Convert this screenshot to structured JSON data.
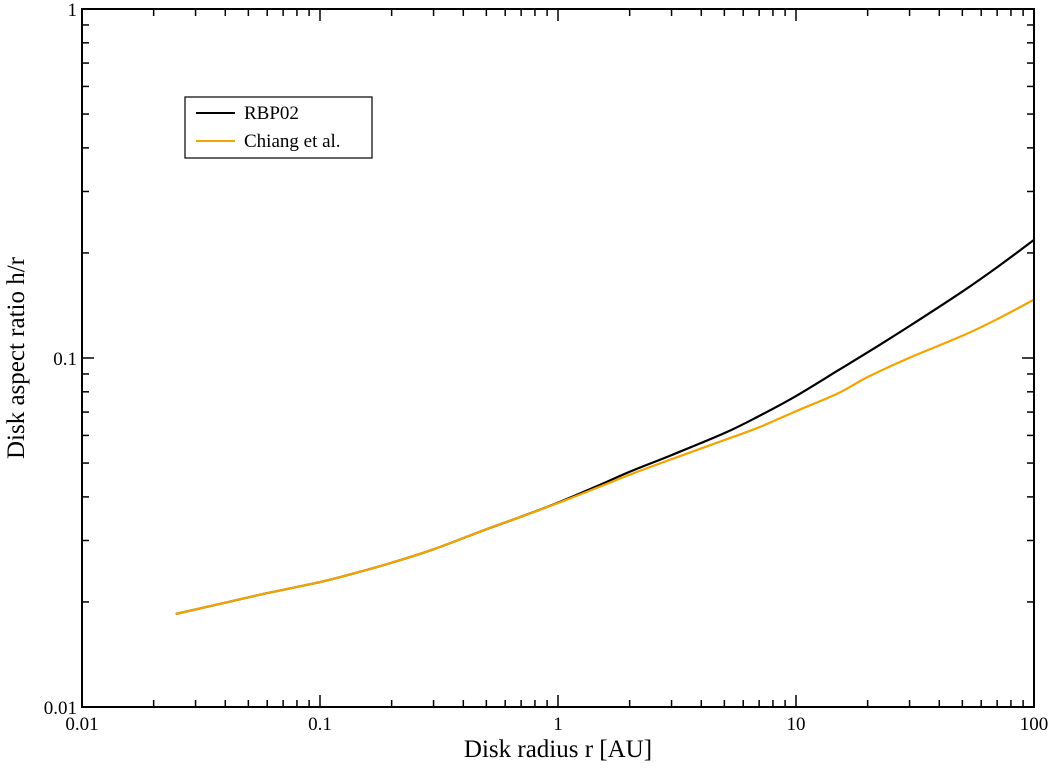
{
  "chart_data": {
    "type": "line",
    "title": "",
    "xlabel": "Disk radius  r [AU]",
    "ylabel": "Disk aspect ratio  h/r",
    "xscale": "log",
    "yscale": "log",
    "xlim": [
      0.01,
      100
    ],
    "ylim": [
      0.01,
      1
    ],
    "x_ticks": [
      0.01,
      0.1,
      1,
      10,
      100
    ],
    "x_tick_labels": [
      "0.01",
      "0.1",
      "1",
      "10",
      "100"
    ],
    "y_ticks": [
      0.01,
      0.1,
      1
    ],
    "y_tick_labels": [
      "0.01",
      "0.1",
      "1"
    ],
    "grid": false,
    "legend_position": "top-left",
    "series": [
      {
        "name": "RBP02",
        "color": "#000000",
        "x": [
          0.025,
          0.04,
          0.06,
          0.1,
          0.15,
          0.2,
          0.3,
          0.5,
          0.7,
          1,
          1.5,
          2,
          3,
          5,
          7,
          10,
          15,
          20,
          30,
          50,
          70,
          100
        ],
        "y": [
          0.0185,
          0.0199,
          0.0212,
          0.0228,
          0.0245,
          0.0259,
          0.0283,
          0.0323,
          0.0351,
          0.0385,
          0.0433,
          0.0472,
          0.0527,
          0.0609,
          0.0682,
          0.0778,
          0.0921,
          0.1038,
          0.1235,
          0.155,
          0.182,
          0.218
        ]
      },
      {
        "name": "Chiang et al.",
        "color": "#f5a300",
        "x": [
          0.025,
          0.04,
          0.06,
          0.1,
          0.15,
          0.2,
          0.3,
          0.5,
          0.7,
          1,
          1.5,
          2,
          3,
          5,
          7,
          10,
          15,
          20,
          30,
          50,
          70,
          100
        ],
        "y": [
          0.0185,
          0.0199,
          0.0212,
          0.0228,
          0.0245,
          0.0259,
          0.0283,
          0.0323,
          0.0351,
          0.0384,
          0.0428,
          0.0463,
          0.0513,
          0.0582,
          0.0633,
          0.0704,
          0.0792,
          0.0882,
          0.1002,
          0.1158,
          0.1292,
          0.147
        ]
      }
    ]
  }
}
